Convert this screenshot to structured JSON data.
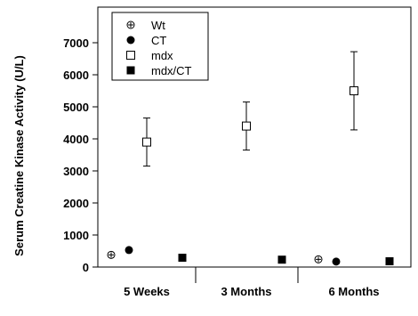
{
  "chart_data": {
    "type": "scatter",
    "ylabel": "Serum Creatine Kinase Activity (U/L)",
    "ylim": [
      0,
      7000
    ],
    "yticks": [
      0,
      1000,
      2000,
      3000,
      4000,
      5000,
      6000,
      7000
    ],
    "categories": [
      "5 Weeks",
      "3 Months",
      "6 Months"
    ],
    "legend_position": "top-left",
    "series": [
      {
        "name": "Wt",
        "marker": "open-circle",
        "values": [
          380,
          null,
          240
        ],
        "err": [
          null,
          null,
          null
        ]
      },
      {
        "name": "CT",
        "marker": "filled-circle",
        "values": [
          530,
          null,
          170
        ],
        "err": [
          null,
          null,
          null
        ]
      },
      {
        "name": "mdx",
        "marker": "open-square",
        "values": [
          3900,
          4400,
          5500
        ],
        "err": [
          750,
          750,
          1220
        ]
      },
      {
        "name": "mdx/CT",
        "marker": "filled-square",
        "values": [
          290,
          230,
          180
        ],
        "err": [
          null,
          null,
          null
        ]
      }
    ]
  }
}
